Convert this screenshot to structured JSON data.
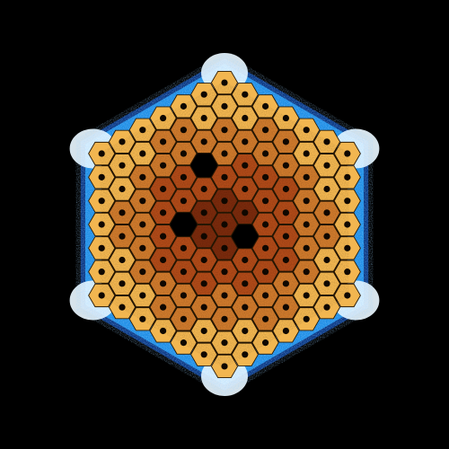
{
  "image": {
    "subject": "hexagonal-lattice-map",
    "background_color": "#000000",
    "cells": {
      "rings": 6,
      "missing_cells": [
        [
          -2,
          1
        ],
        [
          1,
          0
        ],
        [
          -1,
          -2
        ]
      ]
    },
    "colors": {
      "halo_outer": "#0a3f9a",
      "halo_mid": "#1e8ee6",
      "halo_inner": "#e8f6ff",
      "cell_outer": "#f2b650",
      "cell_inner": "#cf7a2c",
      "core_dark": "#7a2a0c",
      "cell_stroke": "#2a1a05",
      "cell_dot": "#100800",
      "gap": "#000000"
    }
  }
}
